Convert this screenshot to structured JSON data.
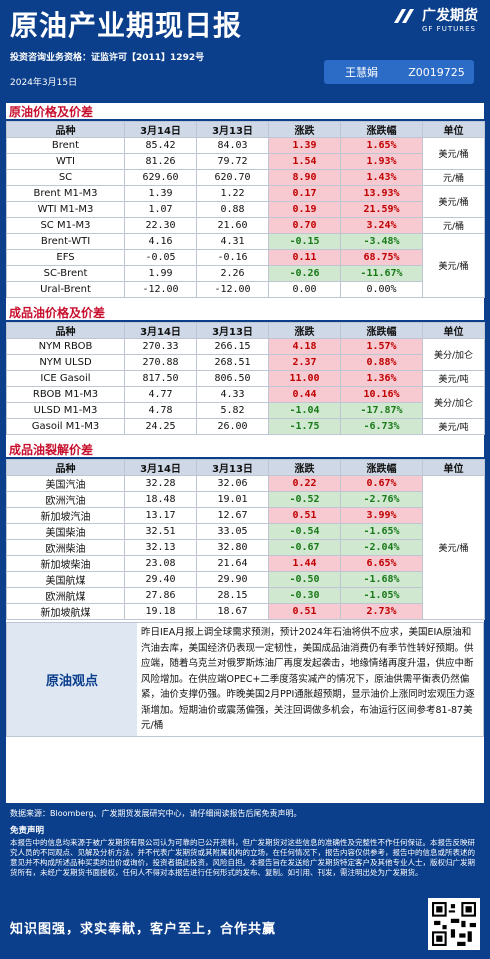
{
  "header": {
    "title": "原油产业期现日报",
    "logo": "广发期货",
    "logo_sub": "GF FUTURES",
    "license": "投资咨询业务资格：证监许可【2011】1292号",
    "date": "2024年3月15日",
    "analyst": "王慧娟",
    "analyst_id": "Z0019725"
  },
  "crude": {
    "section": "原油价格及价差",
    "headers": [
      "品种",
      "3月14日",
      "3月13日",
      "涨跌",
      "涨跌幅",
      "单位"
    ],
    "rows": [
      {
        "name": "Brent",
        "d1": "85.42",
        "d2": "84.03",
        "chg": "1.39",
        "pct": "1.65%",
        "sign": "pos"
      },
      {
        "name": "WTI",
        "d1": "81.26",
        "d2": "79.72",
        "chg": "1.54",
        "pct": "1.93%",
        "sign": "pos"
      },
      {
        "name": "SC",
        "d1": "629.60",
        "d2": "620.70",
        "chg": "8.90",
        "pct": "1.43%",
        "sign": "pos"
      },
      {
        "name": "Brent  M1-M3",
        "d1": "1.39",
        "d2": "1.22",
        "chg": "0.17",
        "pct": "13.93%",
        "sign": "pos"
      },
      {
        "name": "WTI  M1-M3",
        "d1": "1.07",
        "d2": "0.88",
        "chg": "0.19",
        "pct": "21.59%",
        "sign": "pos"
      },
      {
        "name": "SC  M1-M3",
        "d1": "22.30",
        "d2": "21.60",
        "chg": "0.70",
        "pct": "3.24%",
        "sign": "pos"
      },
      {
        "name": "Brent-WTI",
        "d1": "4.16",
        "d2": "4.31",
        "chg": "-0.15",
        "pct": "-3.48%",
        "sign": "neg"
      },
      {
        "name": "EFS",
        "d1": "-0.05",
        "d2": "-0.16",
        "chg": "0.11",
        "pct": "68.75%",
        "sign": "pos"
      },
      {
        "name": "SC-Brent",
        "d1": "1.99",
        "d2": "2.26",
        "chg": "-0.26",
        "pct": "-11.67%",
        "sign": "neg"
      },
      {
        "name": "Ural-Brent",
        "d1": "-12.00",
        "d2": "-12.00",
        "chg": "0.00",
        "pct": "0.00%",
        "sign": "zero"
      }
    ],
    "units": [
      "美元/桶",
      "元/桶",
      "美元/桶",
      "元/桶",
      "美元/桶"
    ]
  },
  "products": {
    "section": "成品油价格及价差",
    "headers": [
      "品种",
      "3月14日",
      "3月13日",
      "涨跌",
      "涨跌幅",
      "单位"
    ],
    "rows": [
      {
        "name": "NYM RBOB",
        "d1": "270.33",
        "d2": "266.15",
        "chg": "4.18",
        "pct": "1.57%",
        "sign": "pos"
      },
      {
        "name": "NYM ULSD",
        "d1": "270.88",
        "d2": "268.51",
        "chg": "2.37",
        "pct": "0.88%",
        "sign": "pos"
      },
      {
        "name": "ICE Gasoil",
        "d1": "817.50",
        "d2": "806.50",
        "chg": "11.00",
        "pct": "1.36%",
        "sign": "pos"
      },
      {
        "name": "RBOB  M1-M3",
        "d1": "4.77",
        "d2": "4.33",
        "chg": "0.44",
        "pct": "10.16%",
        "sign": "pos"
      },
      {
        "name": "ULSD  M1-M3",
        "d1": "4.78",
        "d2": "5.82",
        "chg": "-1.04",
        "pct": "-17.87%",
        "sign": "neg"
      },
      {
        "name": "Gasoil  M1-M3",
        "d1": "24.25",
        "d2": "26.00",
        "chg": "-1.75",
        "pct": "-6.73%",
        "sign": "neg"
      }
    ],
    "units": [
      "美分/加仑",
      "美元/吨",
      "美分/加仑",
      "美元/吨"
    ]
  },
  "cracks": {
    "section": "成品油裂解价差",
    "headers": [
      "品种",
      "3月14日",
      "3月13日",
      "涨跌",
      "涨跌幅",
      "单位"
    ],
    "rows": [
      {
        "name": "美国汽油",
        "d1": "32.28",
        "d2": "32.06",
        "chg": "0.22",
        "pct": "0.67%",
        "sign": "pos"
      },
      {
        "name": "欧洲汽油",
        "d1": "18.48",
        "d2": "19.01",
        "chg": "-0.52",
        "pct": "-2.76%",
        "sign": "neg"
      },
      {
        "name": "新加坡汽油",
        "d1": "13.17",
        "d2": "12.67",
        "chg": "0.51",
        "pct": "3.99%",
        "sign": "pos"
      },
      {
        "name": "美国柴油",
        "d1": "32.51",
        "d2": "33.05",
        "chg": "-0.54",
        "pct": "-1.65%",
        "sign": "neg"
      },
      {
        "name": "欧洲柴油",
        "d1": "32.13",
        "d2": "32.80",
        "chg": "-0.67",
        "pct": "-2.04%",
        "sign": "neg"
      },
      {
        "name": "新加坡柴油",
        "d1": "23.08",
        "d2": "21.64",
        "chg": "1.44",
        "pct": "6.65%",
        "sign": "pos"
      },
      {
        "name": "美国航煤",
        "d1": "29.40",
        "d2": "29.90",
        "chg": "-0.50",
        "pct": "-1.68%",
        "sign": "neg"
      },
      {
        "name": "欧洲航煤",
        "d1": "27.86",
        "d2": "28.15",
        "chg": "-0.30",
        "pct": "-1.05%",
        "sign": "neg"
      },
      {
        "name": "新加坡航煤",
        "d1": "19.18",
        "d2": "18.67",
        "chg": "0.51",
        "pct": "2.73%",
        "sign": "pos"
      }
    ],
    "unit": "美元/桶"
  },
  "view": {
    "label": "原油观点",
    "text": "昨日IEA月报上调全球需求预测，预计2024年石油将供不应求，美国EIA原油和汽油去库，美国经济仍表现一定韧性，美国成品油消费仍有季节性转好预期。供应端，随着乌克兰对俄罗斯炼油厂再度发起袭击，地缘情绪再度升温，供应中断风险增加。在供应端OPEC+二季度落实减产的情况下，原油供需平衡表仍然偏紧，油价支撑仍强。昨晚美国2月PPI通胀超预期，显示油价上涨同时宏观压力逐渐增加。短期油价或震荡偏强，关注回调做多机会，布油运行区间参考81-87美元/桶"
  },
  "footer": {
    "source": "数据来源：Bloomberg、广发期货发展研究中心，请仔细阅读报告后尾免责声明。",
    "disclaimer_title": "免责声明",
    "disclaimer": "本报告中的信息均来源于被广发期货有限公司认为可靠的已公开资料，但广发期货对这些信息的准确性及完整性不作任何保证。本报告反映研究人员的不同观点、见解及分析方法，并不代表广发期货或其附属机构的立场，在任何情况下，报告内容仅供参考，报告中的信息或所表述的意见并不构成所述品种买卖的出价或询价，投资者据此投资，风险自担。本报告旨在发送给广发期货特定客户及其他专业人士，版权归广发期货所有，未经广发期货书面授权，任何人不得对本报告进行任何形式的发布、复制。如引用、刊发，需注明出处为广发期货。",
    "slogan": "知识图强，求实奉献，客户至上，合作共赢"
  },
  "colors": {
    "brand": "#0b3f8c",
    "up": "#c00000",
    "up_bg": "#f7c9d0",
    "down": "#1a7a1a",
    "down_bg": "#cfe8cf",
    "section": "#c8102e"
  }
}
